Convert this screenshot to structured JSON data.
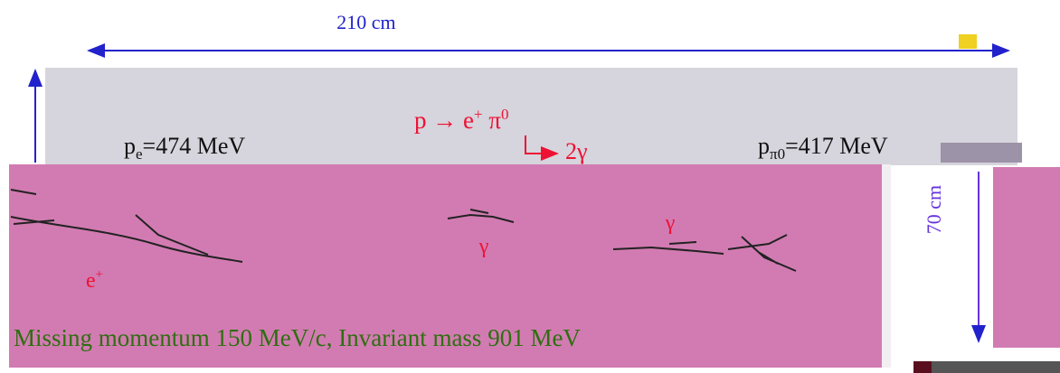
{
  "figure": {
    "width_label": "210 cm",
    "height_label": "70 cm",
    "positron_momentum": {
      "base": "p",
      "sub": "e",
      "rest": "=474 MeV"
    },
    "pion_momentum": {
      "base": "p",
      "sub": "π0",
      "rest": "=417 MeV"
    },
    "reaction": {
      "lhs": "p → e",
      "sup1": "+",
      "mid": " π",
      "sup2": "0"
    },
    "decay": "2γ",
    "gamma_1": "γ",
    "gamma_2": "γ",
    "positron": {
      "base": "e",
      "sup": "+"
    },
    "summary": "Missing momentum 150 MeV/c,  Invariant mass 901 MeV"
  }
}
